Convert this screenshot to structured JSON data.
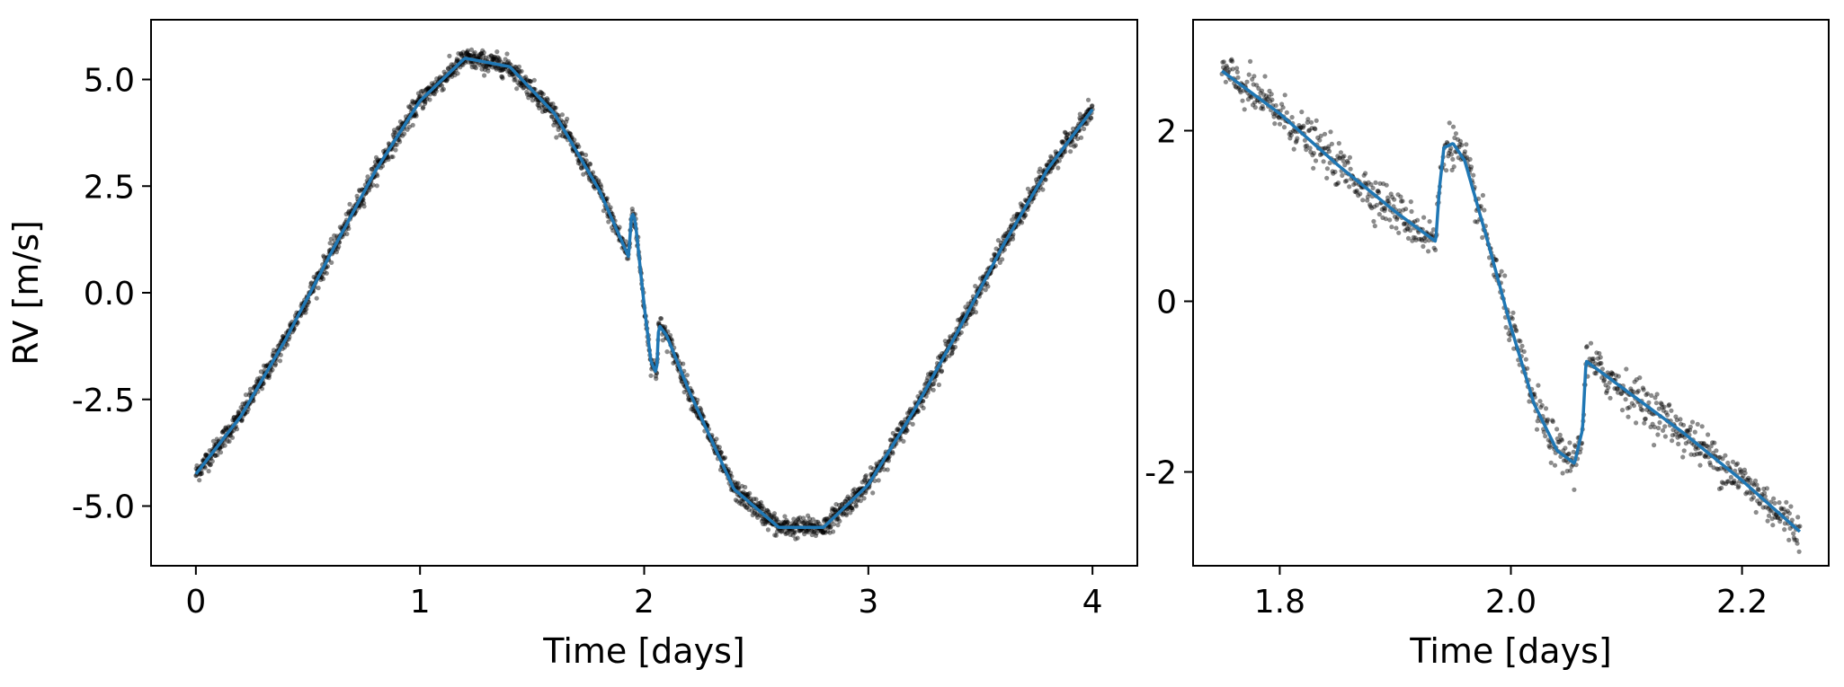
{
  "chart_data": [
    {
      "type": "scatter",
      "xlabel": "Time [days]",
      "ylabel": "RV [m/s]",
      "xlim": [
        -0.2,
        4.2
      ],
      "ylim": [
        -6.4,
        6.4
      ],
      "xticks": [
        0,
        1,
        2,
        3,
        4
      ],
      "xtick_labels": [
        "0",
        "1",
        "2",
        "3",
        "4"
      ],
      "yticks": [
        5.0,
        2.5,
        0.0,
        -2.5,
        -5.0
      ],
      "ytick_labels": [
        "5.0",
        "2.5",
        "0.0",
        "-2.5",
        "-5.0"
      ],
      "grid": false,
      "point_color": "#000000",
      "model_color": "#1f77b4",
      "model_curve": {
        "x": [
          0.0,
          0.2,
          0.4,
          0.6,
          0.8,
          1.0,
          1.2,
          1.4,
          1.6,
          1.8,
          1.93,
          1.945,
          1.96,
          2.0,
          2.03,
          2.055,
          2.065,
          2.1,
          2.2,
          2.4,
          2.6,
          2.8,
          3.0,
          3.2,
          3.4,
          3.6,
          3.8,
          4.0
        ],
        "y": [
          -4.25,
          -2.9,
          -1.1,
          0.9,
          2.85,
          4.5,
          5.5,
          5.3,
          4.2,
          2.4,
          0.85,
          1.9,
          1.7,
          -0.3,
          -1.6,
          -1.9,
          -0.75,
          -1.0,
          -2.3,
          -4.6,
          -5.5,
          -5.5,
          -4.5,
          -2.8,
          -0.9,
          1.1,
          2.9,
          4.3
        ]
      },
      "noise_rms": 0.12
    },
    {
      "type": "scatter",
      "xlabel": "Time [days]",
      "ylabel": "",
      "xlim": [
        1.725,
        2.275
      ],
      "ylim": [
        -3.1,
        3.3
      ],
      "xticks": [
        1.8,
        2.0,
        2.2
      ],
      "xtick_labels": [
        "1.8",
        "2.0",
        "2.2"
      ],
      "yticks": [
        2,
        0,
        -2
      ],
      "ytick_labels": [
        "2",
        "0",
        "-2"
      ],
      "grid": false,
      "point_color": "#000000",
      "model_color": "#1f77b4",
      "model_curve": {
        "x": [
          1.75,
          1.8,
          1.85,
          1.9,
          1.935,
          1.938,
          1.942,
          1.95,
          1.96,
          1.98,
          2.0,
          2.02,
          2.04,
          2.055,
          2.062,
          2.065,
          2.1,
          2.15,
          2.2,
          2.25
        ],
        "y": [
          2.7,
          2.2,
          1.6,
          1.05,
          0.7,
          1.3,
          1.8,
          1.85,
          1.65,
          0.7,
          -0.3,
          -1.2,
          -1.75,
          -1.9,
          -1.5,
          -0.7,
          -1.05,
          -1.55,
          -2.1,
          -2.7
        ]
      },
      "noise_rms": 0.12
    }
  ]
}
